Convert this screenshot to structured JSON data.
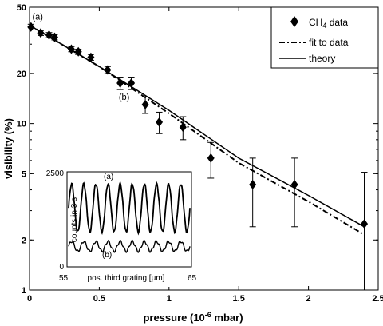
{
  "chart_data": [
    {
      "type": "scatter",
      "xlabel": "pressure (10",
      "xlabel_sup": "-6",
      "xlabel_tail": " mbar)",
      "ylabel": "visibility (%)",
      "xlim": [
        0,
        2.5
      ],
      "ylim": [
        1,
        50
      ],
      "yscale": "log",
      "x_ticks": [
        "0",
        "0.5",
        "1",
        "1.5",
        "2",
        "2.5"
      ],
      "y_ticks": [
        "1",
        "2",
        "5",
        "10",
        "20",
        "50"
      ],
      "legend_position": "top-right",
      "series": [
        {
          "name": "CH",
          "name_sub": "4",
          "name_tail": " data",
          "marker": "diamond",
          "points": [
            {
              "x": 0.01,
              "y": 38,
              "err": 1.5
            },
            {
              "x": 0.08,
              "y": 35,
              "err": 1.2
            },
            {
              "x": 0.14,
              "y": 34,
              "err": 1.2
            },
            {
              "x": 0.18,
              "y": 33,
              "err": 1.2
            },
            {
              "x": 0.3,
              "y": 28,
              "err": 1.0
            },
            {
              "x": 0.35,
              "y": 27,
              "err": 1.0
            },
            {
              "x": 0.44,
              "y": 25,
              "err": 1.0
            },
            {
              "x": 0.56,
              "y": 21,
              "err": 1.0
            },
            {
              "x": 0.65,
              "y": 17.5,
              "err": 1.5
            },
            {
              "x": 0.73,
              "y": 17.5,
              "err": 1.5
            },
            {
              "x": 0.83,
              "y": 13,
              "err": 1.5
            },
            {
              "x": 0.93,
              "y": 10.2,
              "err": 1.5
            },
            {
              "x": 1.1,
              "y": 9.5,
              "err": 1.5
            },
            {
              "x": 1.3,
              "y": 6.2,
              "err": 1.5
            },
            {
              "x": 1.6,
              "y": 4.3,
              "err": 1.9
            },
            {
              "x": 1.9,
              "y": 4.3,
              "err": 1.9
            },
            {
              "x": 2.4,
              "y": 2.5,
              "err": 2.6
            }
          ]
        },
        {
          "name": "fit to data",
          "style": "dash-dot",
          "line": [
            [
              0,
              39
            ],
            [
              0.5,
              22
            ],
            [
              1.0,
              11.5
            ],
            [
              1.5,
              5.8
            ],
            [
              2.0,
              3.4
            ],
            [
              2.4,
              2.15
            ]
          ]
        },
        {
          "name": "theory",
          "style": "solid",
          "line": [
            [
              0,
              39
            ],
            [
              0.5,
              22
            ],
            [
              1.0,
              12
            ],
            [
              1.5,
              6.2
            ],
            [
              2.0,
              3.7
            ],
            [
              2.4,
              2.4
            ]
          ]
        }
      ],
      "annotations": [
        {
          "text": "(a)",
          "x": 0.02,
          "y": 44
        },
        {
          "text": "(b)",
          "x": 0.64,
          "y": 14.5
        }
      ]
    },
    {
      "type": "line",
      "title": "inset",
      "xlabel": "pos. third grating [μm]",
      "ylabel": "counts in 3 s",
      "x_ticks": [
        "55",
        "65"
      ],
      "y_ticks": [
        "0",
        "2500"
      ],
      "xlim": [
        55,
        65
      ],
      "ylim": [
        0,
        2500
      ],
      "series": [
        {
          "label": "(a)",
          "mean": 1550,
          "amplitude": 630,
          "periods": 10
        },
        {
          "label": "(b)",
          "mean": 540,
          "amplitude": 130,
          "periods": 10
        }
      ]
    }
  ]
}
